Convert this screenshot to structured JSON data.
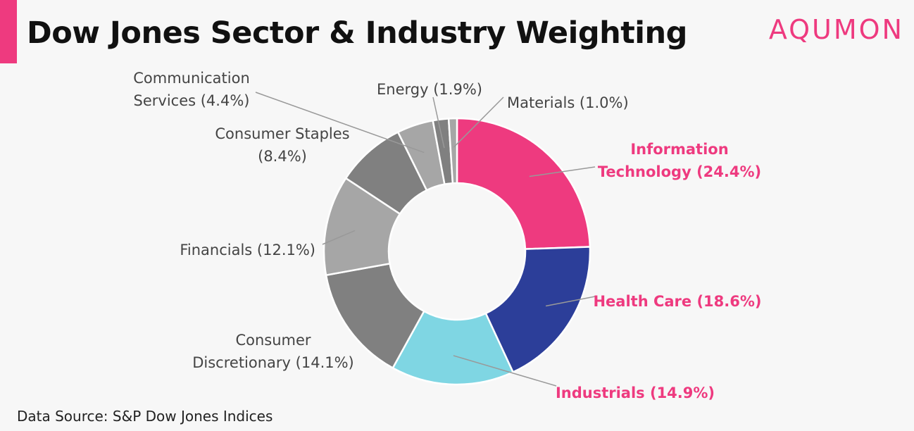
{
  "header": {
    "title": "Dow Jones Sector & Industry Weighting",
    "brand": "AQUMON"
  },
  "footer": {
    "source": "Data Source: S&P Dow Jones Indices"
  },
  "colors": {
    "accent": "#ee3a7f",
    "text_gray": "#444444",
    "leader_line": "#999999"
  },
  "chart_data": {
    "type": "pie",
    "subtype": "donut",
    "unit": "%",
    "title": "Dow Jones Sector & Industry Weighting",
    "slices": [
      {
        "label_lines": [
          "Information",
          "Technology (24.4%)"
        ],
        "value": 24.4,
        "color": "#ee3a7f",
        "highlight": true
      },
      {
        "label_lines": [
          "Health Care (18.6%)"
        ],
        "value": 18.6,
        "color": "#2c3e99",
        "highlight": true
      },
      {
        "label_lines": [
          "Industrials (14.9%)"
        ],
        "value": 14.9,
        "color": "#7fd6e3",
        "highlight": true
      },
      {
        "label_lines": [
          "Consumer",
          "Discretionary (14.1%)"
        ],
        "value": 14.1,
        "color": "#808080",
        "highlight": false
      },
      {
        "label_lines": [
          "Financials (12.1%)"
        ],
        "value": 12.1,
        "color": "#a6a6a6",
        "highlight": false
      },
      {
        "label_lines": [
          "Consumer Staples",
          "(8.4%)"
        ],
        "value": 8.4,
        "color": "#808080",
        "highlight": false
      },
      {
        "label_lines": [
          "Communication",
          "Services (4.4%)"
        ],
        "value": 4.4,
        "color": "#a6a6a6",
        "highlight": false
      },
      {
        "label_lines": [
          "Energy (1.9%)"
        ],
        "value": 1.9,
        "color": "#808080",
        "highlight": false
      },
      {
        "label_lines": [
          "Materials (1.0%)"
        ],
        "value": 1.0,
        "color": "#a6a6a6",
        "highlight": false
      }
    ],
    "legend": "none",
    "labels": "outside-with-leader-lines"
  }
}
